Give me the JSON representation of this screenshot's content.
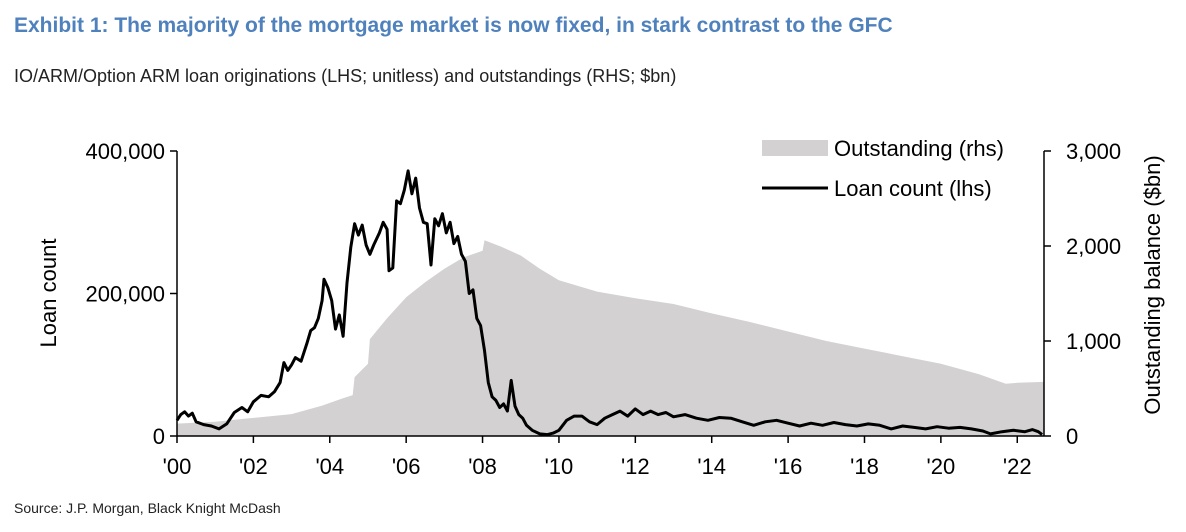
{
  "title": "Exhibit 1: The majority of the mortgage market is now fixed, in stark contrast to the GFC",
  "subtitle": "IO/ARM/Option ARM loan originations (LHS; unitless) and outstandings (RHS; $bn)",
  "source": "Source: J.P. Morgan, Black Knight McDash",
  "colors": {
    "title": "#4f81bd",
    "area": "#d3d1d2",
    "line": "#000000",
    "axis": "#000000"
  },
  "chart_data": {
    "type": "area+line",
    "ylabel_left": "Loan count",
    "ylabel_right": "Outstanding balance ($bn)",
    "xlim": [
      2000,
      2022.7
    ],
    "ylim_left": [
      0,
      400000
    ],
    "ylim_right": [
      0,
      3000
    ],
    "x_ticks": [
      {
        "value": 2000,
        "label": "'00"
      },
      {
        "value": 2002,
        "label": "'02"
      },
      {
        "value": 2004,
        "label": "'04"
      },
      {
        "value": 2006,
        "label": "'06"
      },
      {
        "value": 2008,
        "label": "'08"
      },
      {
        "value": 2010,
        "label": "'10"
      },
      {
        "value": 2012,
        "label": "'12"
      },
      {
        "value": 2014,
        "label": "'14"
      },
      {
        "value": 2016,
        "label": "'16"
      },
      {
        "value": 2018,
        "label": "'18"
      },
      {
        "value": 2020,
        "label": "'20"
      },
      {
        "value": 2022,
        "label": "'22"
      }
    ],
    "left_ticks": [
      {
        "value": 0,
        "label": "0"
      },
      {
        "value": 200000,
        "label": "200,000"
      },
      {
        "value": 400000,
        "label": "400,000"
      }
    ],
    "right_ticks": [
      {
        "value": 0,
        "label": "0"
      },
      {
        "value": 1000,
        "label": "1,000"
      },
      {
        "value": 2000,
        "label": "2,000"
      },
      {
        "value": 3000,
        "label": "3,000"
      }
    ],
    "grid": false,
    "legend_position": "top-right",
    "series": [
      {
        "name": "Outstanding (rhs)",
        "kind": "area",
        "axis": "right",
        "points": [
          [
            2000,
            130
          ],
          [
            2001,
            150
          ],
          [
            2002,
            190
          ],
          [
            2003,
            230
          ],
          [
            2003.8,
            320
          ],
          [
            2004.3,
            390
          ],
          [
            2004.6,
            430
          ],
          [
            2004.65,
            620
          ],
          [
            2005.0,
            760
          ],
          [
            2005.05,
            1020
          ],
          [
            2005.5,
            1240
          ],
          [
            2006.0,
            1460
          ],
          [
            2006.5,
            1620
          ],
          [
            2007.0,
            1760
          ],
          [
            2007.5,
            1880
          ],
          [
            2008.0,
            1950
          ],
          [
            2008.05,
            2060
          ],
          [
            2008.5,
            1990
          ],
          [
            2009.0,
            1900
          ],
          [
            2009.5,
            1760
          ],
          [
            2010.0,
            1640
          ],
          [
            2011.0,
            1520
          ],
          [
            2012.0,
            1450
          ],
          [
            2013.0,
            1390
          ],
          [
            2014.0,
            1290
          ],
          [
            2015.0,
            1200
          ],
          [
            2016.0,
            1100
          ],
          [
            2017.0,
            1000
          ],
          [
            2018.0,
            920
          ],
          [
            2019.0,
            840
          ],
          [
            2020.0,
            760
          ],
          [
            2021.0,
            650
          ],
          [
            2021.7,
            550
          ],
          [
            2022.0,
            560
          ],
          [
            2022.7,
            570
          ]
        ]
      },
      {
        "name": "Loan count (lhs)",
        "kind": "line",
        "axis": "left",
        "points": [
          [
            2000.0,
            22000
          ],
          [
            2000.1,
            30000
          ],
          [
            2000.2,
            34000
          ],
          [
            2000.3,
            28000
          ],
          [
            2000.4,
            32000
          ],
          [
            2000.5,
            20000
          ],
          [
            2000.7,
            16000
          ],
          [
            2000.9,
            14000
          ],
          [
            2001.1,
            10000
          ],
          [
            2001.3,
            17000
          ],
          [
            2001.5,
            33000
          ],
          [
            2001.7,
            40000
          ],
          [
            2001.85,
            34000
          ],
          [
            2002.0,
            48000
          ],
          [
            2002.2,
            57000
          ],
          [
            2002.4,
            55000
          ],
          [
            2002.55,
            62000
          ],
          [
            2002.7,
            75000
          ],
          [
            2002.8,
            103000
          ],
          [
            2002.9,
            92000
          ],
          [
            2003.0,
            100000
          ],
          [
            2003.1,
            110000
          ],
          [
            2003.25,
            105000
          ],
          [
            2003.4,
            130000
          ],
          [
            2003.5,
            148000
          ],
          [
            2003.6,
            152000
          ],
          [
            2003.7,
            165000
          ],
          [
            2003.8,
            190000
          ],
          [
            2003.85,
            220000
          ],
          [
            2003.95,
            208000
          ],
          [
            2004.05,
            190000
          ],
          [
            2004.15,
            150000
          ],
          [
            2004.25,
            170000
          ],
          [
            2004.35,
            140000
          ],
          [
            2004.45,
            215000
          ],
          [
            2004.55,
            265000
          ],
          [
            2004.65,
            298000
          ],
          [
            2004.75,
            282000
          ],
          [
            2004.85,
            296000
          ],
          [
            2004.95,
            268000
          ],
          [
            2005.05,
            255000
          ],
          [
            2005.15,
            268000
          ],
          [
            2005.3,
            285000
          ],
          [
            2005.4,
            300000
          ],
          [
            2005.5,
            290000
          ],
          [
            2005.55,
            232000
          ],
          [
            2005.65,
            236000
          ],
          [
            2005.75,
            330000
          ],
          [
            2005.85,
            326000
          ],
          [
            2005.95,
            345000
          ],
          [
            2006.05,
            372000
          ],
          [
            2006.15,
            340000
          ],
          [
            2006.25,
            362000
          ],
          [
            2006.35,
            320000
          ],
          [
            2006.45,
            300000
          ],
          [
            2006.55,
            298000
          ],
          [
            2006.65,
            240000
          ],
          [
            2006.75,
            305000
          ],
          [
            2006.85,
            295000
          ],
          [
            2006.95,
            312000
          ],
          [
            2007.05,
            285000
          ],
          [
            2007.15,
            300000
          ],
          [
            2007.25,
            270000
          ],
          [
            2007.35,
            280000
          ],
          [
            2007.45,
            255000
          ],
          [
            2007.55,
            245000
          ],
          [
            2007.65,
            200000
          ],
          [
            2007.75,
            205000
          ],
          [
            2007.85,
            165000
          ],
          [
            2007.95,
            155000
          ],
          [
            2008.05,
            120000
          ],
          [
            2008.15,
            75000
          ],
          [
            2008.25,
            55000
          ],
          [
            2008.35,
            50000
          ],
          [
            2008.45,
            40000
          ],
          [
            2008.55,
            45000
          ],
          [
            2008.65,
            35000
          ],
          [
            2008.75,
            78000
          ],
          [
            2008.85,
            42000
          ],
          [
            2008.95,
            30000
          ],
          [
            2009.05,
            25000
          ],
          [
            2009.15,
            15000
          ],
          [
            2009.3,
            8000
          ],
          [
            2009.5,
            3000
          ],
          [
            2009.7,
            2000
          ],
          [
            2009.85,
            4000
          ],
          [
            2010.0,
            8000
          ],
          [
            2010.2,
            22000
          ],
          [
            2010.4,
            28000
          ],
          [
            2010.6,
            28000
          ],
          [
            2010.8,
            20000
          ],
          [
            2011.0,
            16000
          ],
          [
            2011.2,
            25000
          ],
          [
            2011.4,
            30000
          ],
          [
            2011.6,
            35000
          ],
          [
            2011.8,
            28000
          ],
          [
            2012.0,
            38000
          ],
          [
            2012.2,
            30000
          ],
          [
            2012.4,
            35000
          ],
          [
            2012.6,
            30000
          ],
          [
            2012.8,
            33000
          ],
          [
            2013.0,
            27000
          ],
          [
            2013.3,
            30000
          ],
          [
            2013.6,
            25000
          ],
          [
            2013.9,
            22000
          ],
          [
            2014.2,
            26000
          ],
          [
            2014.5,
            25000
          ],
          [
            2014.8,
            20000
          ],
          [
            2015.1,
            15000
          ],
          [
            2015.4,
            20000
          ],
          [
            2015.7,
            22000
          ],
          [
            2016.0,
            18000
          ],
          [
            2016.3,
            14000
          ],
          [
            2016.6,
            18000
          ],
          [
            2016.9,
            15000
          ],
          [
            2017.2,
            19000
          ],
          [
            2017.5,
            16000
          ],
          [
            2017.8,
            14000
          ],
          [
            2018.1,
            17000
          ],
          [
            2018.4,
            15000
          ],
          [
            2018.7,
            10000
          ],
          [
            2019.0,
            14000
          ],
          [
            2019.3,
            12000
          ],
          [
            2019.6,
            10000
          ],
          [
            2019.9,
            13000
          ],
          [
            2020.2,
            11000
          ],
          [
            2020.5,
            12000
          ],
          [
            2020.8,
            10000
          ],
          [
            2021.1,
            7000
          ],
          [
            2021.3,
            3000
          ],
          [
            2021.6,
            6000
          ],
          [
            2021.9,
            8000
          ],
          [
            2022.2,
            6000
          ],
          [
            2022.4,
            9000
          ],
          [
            2022.55,
            6000
          ],
          [
            2022.65,
            2000
          ]
        ]
      }
    ]
  }
}
